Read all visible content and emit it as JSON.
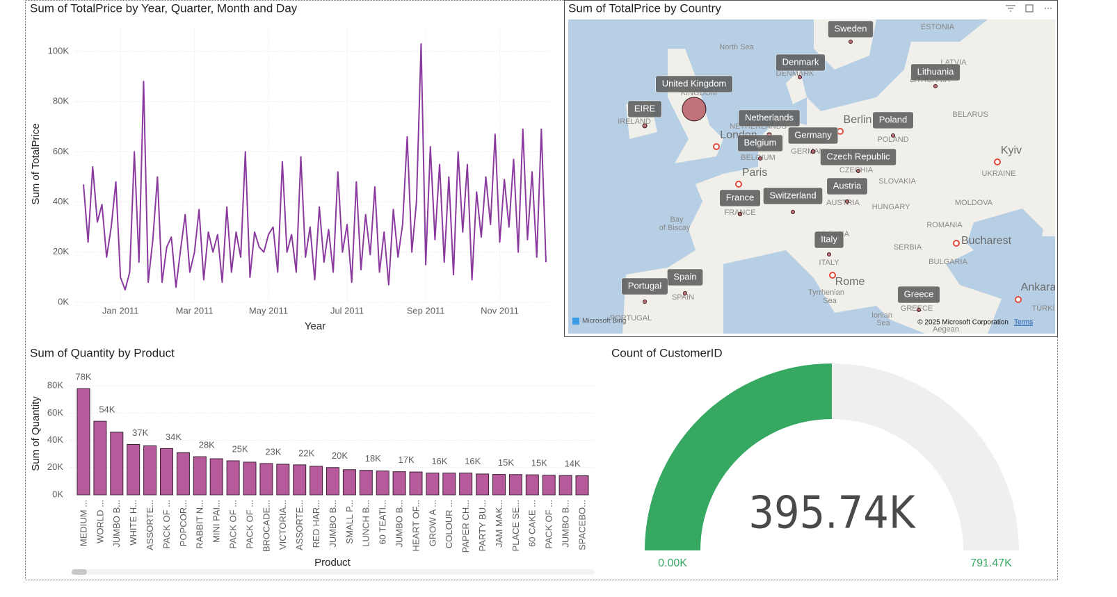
{
  "chart_data": [
    {
      "type": "line",
      "title": "Sum of TotalPrice by Year, Quarter, Month and Day",
      "x_label": "Year",
      "y_label": "Sum of TotalPrice",
      "categories": [
        null,
        null,
        null,
        null,
        null,
        null,
        null,
        null,
        "Jan 2011",
        null,
        null,
        null,
        null,
        null,
        null,
        null,
        null,
        null,
        null,
        null,
        null,
        null,
        null,
        null,
        "Mar 2011",
        null,
        null,
        null,
        null,
        null,
        null,
        null,
        null,
        null,
        null,
        null,
        null,
        null,
        null,
        null,
        "May 2011",
        null,
        null,
        null,
        null,
        null,
        null,
        null,
        null,
        null,
        null,
        null,
        null,
        null,
        null,
        null,
        null,
        "Jul 2011",
        null,
        null,
        null,
        null,
        null,
        null,
        null,
        null,
        null,
        null,
        null,
        null,
        null,
        null,
        null,
        null,
        "Sep 2011",
        null,
        null,
        null,
        null,
        null,
        null,
        null,
        null,
        null,
        null,
        null,
        null,
        null,
        null,
        null,
        "Nov 2011",
        null,
        null,
        null,
        null,
        null,
        null,
        null,
        null,
        null,
        null
      ],
      "series": [
        {
          "name": "Sum of TotalPrice",
          "color": "#8a3a9e",
          "values": [
            47000,
            24000,
            54000,
            32000,
            39000,
            18000,
            30000,
            48000,
            10000,
            5000,
            12000,
            60000,
            16000,
            88000,
            8000,
            25000,
            50000,
            8000,
            22000,
            26000,
            6000,
            21000,
            35000,
            12000,
            20000,
            37000,
            9000,
            28000,
            20000,
            27000,
            8000,
            38000,
            12000,
            28000,
            18000,
            60000,
            10000,
            28000,
            22000,
            20000,
            27000,
            30000,
            12000,
            56000,
            20000,
            27000,
            12000,
            58000,
            18000,
            30000,
            9000,
            38000,
            16000,
            29000,
            12000,
            52000,
            20000,
            31000,
            8000,
            48000,
            13000,
            35000,
            19000,
            46000,
            12000,
            28000,
            7000,
            37000,
            18000,
            31000,
            66000,
            20000,
            40000,
            103000,
            15000,
            62000,
            25000,
            55000,
            16000,
            50000,
            11000,
            60000,
            28000,
            55000,
            9000,
            44000,
            26000,
            50000,
            31000,
            67000,
            24000,
            49000,
            30000,
            57000,
            20000,
            69000,
            25000,
            52000,
            18000,
            69000,
            16000
          ]
        }
      ],
      "ylim": [
        0,
        109000
      ],
      "yticks": [
        {
          "value": 0,
          "label": "0K"
        },
        {
          "value": 20000,
          "label": "20K"
        },
        {
          "value": 40000,
          "label": "40K"
        },
        {
          "value": 60000,
          "label": "60K"
        },
        {
          "value": 80000,
          "label": "80K"
        },
        {
          "value": 100000,
          "label": "100K"
        }
      ],
      "grid": true
    },
    {
      "type": "map",
      "title": "Sum of TotalPrice by Country",
      "categories": [
        "Sweden",
        "Denmark",
        "Lithuania",
        "United Kingdom",
        "EIRE",
        "Netherlands",
        "Poland",
        "Germany",
        "Belgium",
        "Czech Republic",
        "Austria",
        "France",
        "Switzerland",
        "Italy",
        "Spain",
        "Portugal",
        "Greece"
      ],
      "values": [
        36596,
        18768,
        1661,
        8187806,
        263277,
        284662,
        7213,
        221698,
        40911,
        708,
        10154,
        197404,
        56385,
        16891,
        54775,
        29367,
        4711
      ],
      "color": "#b04a55",
      "places": [
        "ESTONIA",
        "North Sea",
        "DENMARK",
        "LATVIA",
        "LITHUANIA",
        "BELARUS",
        "IRELAND",
        "KINGDOM",
        "NETHERLANDS",
        "London",
        "Berlin",
        "POLAND",
        "BELGIUM",
        "GERMANY",
        "Kyiv",
        "UKRAINE",
        "CZECHIA",
        "Paris",
        "SLOVAKIA",
        "AUSTRIA",
        "MOLDOVA",
        "HUNGARY",
        "FRANCE",
        "Bay",
        "of Biscay",
        "ROMANIA",
        "CROATIA",
        "Bucharest",
        "SERBIA",
        "BULGARIA",
        "ITALY",
        "Rome",
        "SPAIN",
        "Tyrrhenian",
        "Sea",
        "Ankara",
        "PORTUGAL",
        "GREECE",
        "TÜRKİ",
        "Ionian",
        "Sea",
        "Aegean"
      ],
      "attribution": [
        "Microsoft Bing",
        "© 2025 Microsoft Corporation",
        "Terms"
      ]
    },
    {
      "type": "bar",
      "title": "Sum of Quantity by Product",
      "x_label": "Product",
      "y_label": "Sum of Quantity",
      "categories": [
        "MEDIUM ...",
        "WORLD ...",
        "JUMBO B...",
        "WHITE H...",
        "ASSORTE...",
        "PACK OF ...",
        "POPCOR...",
        "RABBIT N...",
        "MINI PAI...",
        "PACK OF ...",
        "PACK OF ...",
        "BROCADE...",
        "VICTORIA...",
        "ASSORTE...",
        "RED HAR...",
        "JUMBO B...",
        "SMALL P...",
        "LUNCH B...",
        "60 TEATI...",
        "JUMBO B...",
        "HEART OF...",
        "GROW A ...",
        "COLOUR ...",
        "PAPER CH...",
        "PARTY BU...",
        "JAM MAK...",
        "PLACE SE...",
        "60 CAKE ...",
        "PACK OF ...",
        "JUMBO B...",
        "SPACEBO..."
      ],
      "values": [
        78000,
        54000,
        46000,
        37000,
        36000,
        34000,
        31000,
        28000,
        26500,
        25000,
        24000,
        23000,
        22500,
        22000,
        21000,
        20000,
        18500,
        18000,
        17500,
        17000,
        16800,
        16000,
        16000,
        16000,
        15300,
        15000,
        14900,
        14700,
        14400,
        14200,
        14000
      ],
      "value_labels": [
        "78K",
        "54K",
        null,
        "37K",
        null,
        "34K",
        null,
        "28K",
        null,
        "25K",
        null,
        "23K",
        null,
        "22K",
        null,
        "20K",
        null,
        "18K",
        null,
        "17K",
        null,
        "16K",
        null,
        "16K",
        null,
        "15K",
        null,
        "15K",
        null,
        "14K",
        null
      ],
      "color": "#b65a9b",
      "ylim": [
        0,
        88000
      ],
      "yticks": [
        {
          "value": 0,
          "label": "0K"
        },
        {
          "value": 20000,
          "label": "20K"
        },
        {
          "value": 40000,
          "label": "40K"
        },
        {
          "value": 60000,
          "label": "60K"
        },
        {
          "value": 80000,
          "label": "80K"
        }
      ],
      "grid": true
    },
    {
      "type": "gauge",
      "title": "Count of CustomerID",
      "value": 395740,
      "value_label": "395.74K",
      "min": 0,
      "min_label": "0.00K",
      "max": 791470,
      "max_label": "791.47K",
      "color": "#37a862",
      "track_color": "#efefef"
    }
  ]
}
